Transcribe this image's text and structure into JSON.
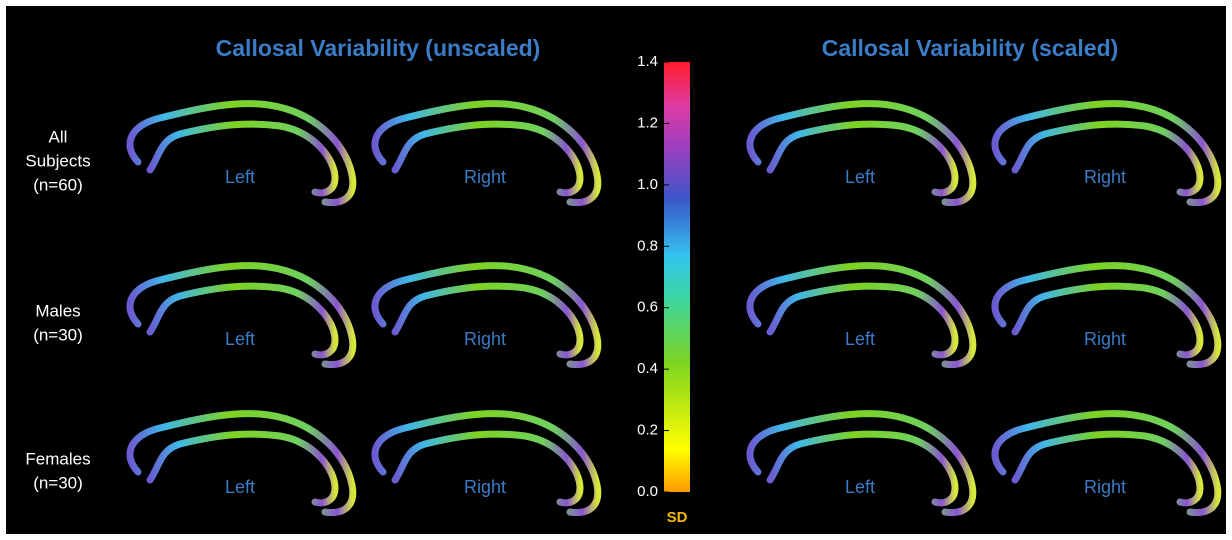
{
  "titles": {
    "unscaled": "Callosal Variability (unscaled)",
    "scaled": "Callosal Variability (scaled)"
  },
  "rows": [
    {
      "label": [
        "All",
        "Subjects",
        "(n=60)"
      ]
    },
    {
      "label": [
        "Males",
        "(n=30)"
      ]
    },
    {
      "label": [
        "Females",
        "(n=30)"
      ]
    }
  ],
  "panel_labels": [
    "Left",
    "Right"
  ],
  "colorbar": {
    "range": [
      0,
      1.4
    ],
    "ticks": [
      {
        "value": 0,
        "label": "0.0"
      },
      0.2,
      0.4,
      0.6,
      0.8,
      {
        "value": 1,
        "label": "1.0"
      },
      1.2,
      1.4
    ],
    "label": "SD"
  }
}
